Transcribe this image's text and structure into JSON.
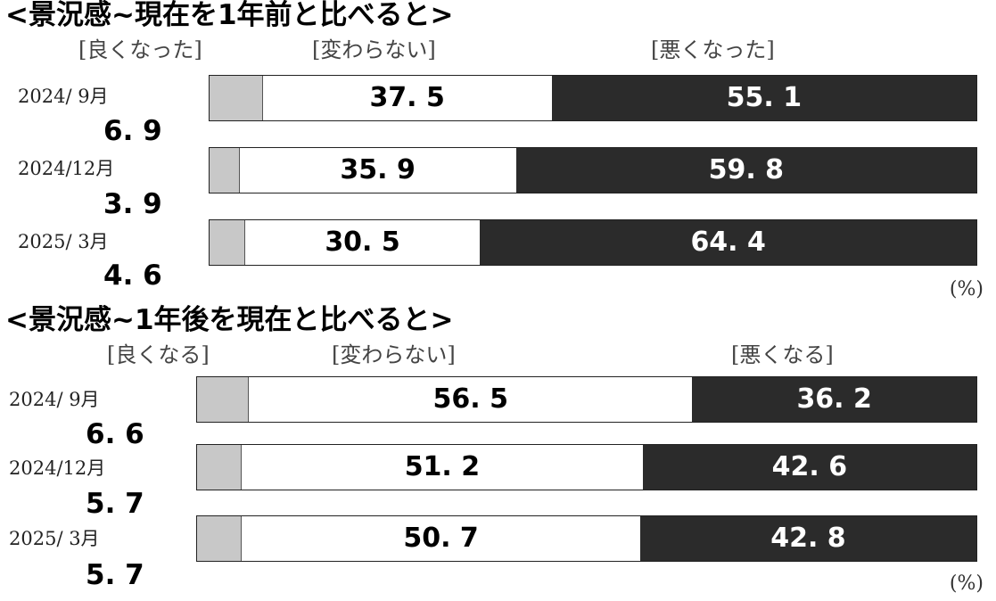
{
  "chart_data": [
    {
      "type": "bar",
      "stacked": true,
      "orientation": "horizontal",
      "title": "<景況感~現在を1年前と比べると>",
      "categories": [
        "2024/ 9月",
        "2024/12月",
        "2025/ 3月"
      ],
      "series": [
        {
          "name": "[良くなった]",
          "values": [
            6.9,
            3.9,
            4.6
          ],
          "color": "#c8c8c8"
        },
        {
          "name": "[変わらない]",
          "values": [
            37.5,
            35.9,
            30.5
          ],
          "color": "#ffffff"
        },
        {
          "name": "[悪くなった]",
          "values": [
            55.1,
            59.8,
            64.4
          ],
          "color": "#2b2b2b"
        }
      ],
      "labels": {
        "good": [
          "6. 9",
          "3. 9",
          "4. 6"
        ],
        "same": [
          "37. 5",
          "35. 9",
          "30. 5"
        ],
        "bad": [
          "55. 1",
          "59. 8",
          "64. 4"
        ]
      },
      "unit": "(%)",
      "xlim": [
        0,
        100
      ]
    },
    {
      "type": "bar",
      "stacked": true,
      "orientation": "horizontal",
      "title": "<景況感~1年後を現在と比べると>",
      "categories": [
        "2024/ 9月",
        "2024/12月",
        "2025/ 3月"
      ],
      "series": [
        {
          "name": "[良くなる]",
          "values": [
            6.6,
            5.7,
            5.7
          ],
          "color": "#c8c8c8"
        },
        {
          "name": "[変わらない]",
          "values": [
            56.5,
            51.2,
            50.7
          ],
          "color": "#ffffff"
        },
        {
          "name": "[悪くなる]",
          "values": [
            36.2,
            42.6,
            42.8
          ],
          "color": "#2b2b2b"
        }
      ],
      "labels": {
        "good": [
          "6. 6",
          "5. 7",
          "5. 7"
        ],
        "same": [
          "56. 5",
          "51. 2",
          "50. 7"
        ],
        "bad": [
          "36. 2",
          "42. 6",
          "42. 8"
        ]
      },
      "unit": "(%)",
      "xlim": [
        0,
        100
      ]
    }
  ]
}
